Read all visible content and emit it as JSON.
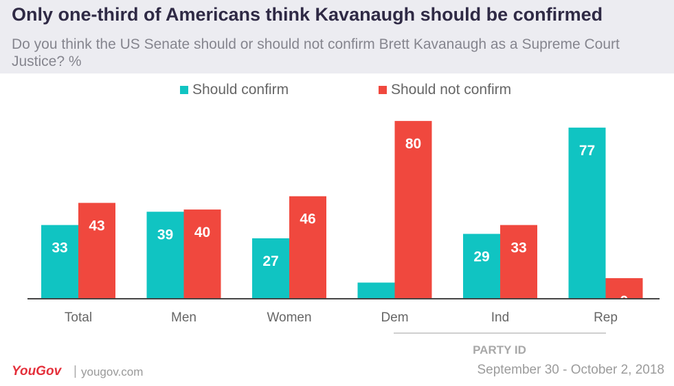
{
  "title": "Only one-third of Americans think Kavanaugh should be confirmed",
  "subtitle": "Do you think the US Senate should or should not confirm Brett Kavanaugh as a Supreme Court Justice? %",
  "colors": {
    "confirm": "#10c4c2",
    "not_confirm": "#f0483e",
    "axis": "#444444",
    "label": "#666666"
  },
  "chart_data": {
    "type": "bar",
    "title": "Only one-third of Americans think Kavanaugh should be confirmed",
    "categories": [
      "Total",
      "Men",
      "Women",
      "Dem",
      "Ind",
      "Rep"
    ],
    "series": [
      {
        "name": "Should confirm",
        "values": [
          33,
          39,
          27,
          7,
          29,
          77
        ]
      },
      {
        "name": "Should not confirm",
        "values": [
          43,
          40,
          46,
          80,
          33,
          9
        ]
      }
    ],
    "ylim": [
      0,
      85
    ],
    "grid": false,
    "group_label": "PARTY ID",
    "legend_position": "top"
  },
  "footer": {
    "brand": "YouGov",
    "separator": "|",
    "url": "yougov.com",
    "date": "September 30 - October 2, 2018"
  }
}
